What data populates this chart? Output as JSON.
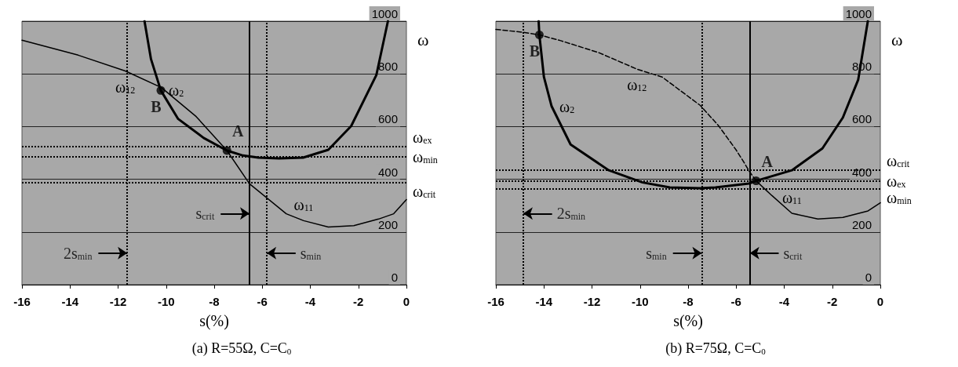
{
  "chart_data": [
    {
      "type": "line",
      "title": "(a) R=55Ω, C=C$_{0}$",
      "xlabel": "s(%)",
      "ylabel": "ω",
      "xlim": [
        -16,
        0
      ],
      "xticks": [
        -16,
        -14,
        -12,
        -10,
        -8,
        -6,
        -4,
        -2,
        0
      ],
      "ylim": [
        0,
        1000
      ],
      "yticks": [
        0,
        200,
        400,
        600,
        800,
        1000
      ],
      "grid": "y",
      "marker": "none",
      "series": [
        {
          "name": "ω$_{2}$",
          "color": "#000000",
          "line_style": "solid",
          "x": [
            -10.9,
            -10.63,
            -10.22,
            -9.5,
            -8.44,
            -7.47,
            -6.8,
            -6.16,
            -5.3,
            -4.3,
            -3.25,
            -2.3,
            -1.25,
            -0.77
          ],
          "values": [
            1000,
            856,
            737,
            629,
            557,
            509,
            490,
            482,
            479,
            482,
            512,
            602,
            796,
            1000
          ]
        },
        {
          "name": "ω$_{12}$",
          "color": "#000000",
          "line_style": "solid",
          "x": [
            -16,
            -13.66,
            -11.7,
            -10.2,
            -8.75,
            -7.47
          ],
          "values": [
            928,
            871,
            811,
            748,
            638,
            509
          ]
        },
        {
          "name": "ω$_{11}$",
          "color": "#000000",
          "line_style": "solid",
          "x": [
            -7.47,
            -6.53,
            -5.0,
            -4.28,
            -3.25,
            -2.19,
            -1.16,
            -0.53,
            0
          ],
          "values": [
            509,
            383,
            269,
            243,
            219,
            224,
            249,
            269,
            323
          ]
        }
      ],
      "ref_lines": [
        {
          "axis": "x",
          "value": -11.62,
          "label": "2s$_{min}$",
          "line_style": "dotted"
        },
        {
          "axis": "x",
          "value": -6.53,
          "label": "s$_{crit}$",
          "line_style": "solid"
        },
        {
          "axis": "x",
          "value": -5.81,
          "label": "s$_{min}$",
          "line_style": "dotted"
        },
        {
          "axis": "y",
          "value": 524,
          "label": "ω$_{ex}$",
          "line_style": "dotted"
        },
        {
          "axis": "y",
          "value": 485,
          "label": "ω$_{min}$",
          "line_style": "dotted"
        },
        {
          "axis": "y",
          "value": 389,
          "label": "ω$_{crit}$",
          "line_style": "dotted"
        }
      ],
      "annotations": [
        {
          "text": "A",
          "x": -7.47,
          "y": 509
        },
        {
          "text": "B",
          "x": -10.22,
          "y": 737
        }
      ]
    },
    {
      "type": "line",
      "title": "(b) R=75Ω, C=C$_{0}$",
      "xlabel": "s(%)",
      "ylabel": "ω",
      "xlim": [
        -16,
        0
      ],
      "xticks": [
        -16,
        -14,
        -12,
        -10,
        -8,
        -6,
        -4,
        -2,
        0
      ],
      "ylim": [
        0,
        1000
      ],
      "yticks": [
        0,
        200,
        400,
        600,
        800,
        1000
      ],
      "grid": "y",
      "marker": "none",
      "series": [
        {
          "name": "ω$_{2}$",
          "color": "#000000",
          "line_style": "solid",
          "x": [
            -14.22,
            -14.19,
            -14.0,
            -13.68,
            -12.89,
            -11.3,
            -9.9,
            -8.76,
            -7.49,
            -6.86,
            -5.46,
            -5.17,
            -3.68,
            -2.41,
            -1.56,
            -0.92,
            -0.52
          ],
          "values": [
            1000,
            948,
            788,
            677,
            532,
            434,
            388,
            369,
            366,
            369,
            384,
            394,
            434,
            517,
            634,
            778,
            1000
          ]
        },
        {
          "name": "ω$_{12}$",
          "color": "#000000",
          "line_style": "dashed",
          "x": [
            -16,
            -14.8,
            -14.19,
            -13.3,
            -11.7,
            -10.13,
            -9.08,
            -7.49,
            -6.73,
            -6.0,
            -5.68,
            -5.46,
            -5.17
          ],
          "values": [
            969,
            957,
            948,
            926,
            880,
            818,
            788,
            680,
            603,
            511,
            465,
            431,
            394
          ]
        },
        {
          "name": "ω$_{11}$",
          "color": "#000000",
          "line_style": "solid",
          "x": [
            -5.17,
            -4.51,
            -3.68,
            -2.6,
            -1.56,
            -0.51,
            0
          ],
          "values": [
            394,
            338,
            271,
            249,
            255,
            280,
            311
          ]
        }
      ],
      "ref_lines": [
        {
          "axis": "x",
          "value": -7.43,
          "label": "s$_{min}$",
          "line_style": "dotted"
        },
        {
          "axis": "x",
          "value": -14.86,
          "label": "2s$_{min}$",
          "line_style": "dotted"
        },
        {
          "axis": "x",
          "value": -5.43,
          "label": "s$_{crit}$",
          "line_style": "solid"
        },
        {
          "axis": "y",
          "value": 435,
          "label": "ω$_{crit}$",
          "line_style": "dotted"
        },
        {
          "axis": "y",
          "value": 393,
          "label": "ω$_{ex}$",
          "line_style": "dotted"
        },
        {
          "axis": "y",
          "value": 365,
          "label": "ω$_{min}$",
          "line_style": "dotted"
        }
      ],
      "annotations": [
        {
          "text": "A",
          "x": -5.17,
          "y": 394
        },
        {
          "text": "B",
          "x": -14.19,
          "y": 948
        }
      ]
    }
  ]
}
